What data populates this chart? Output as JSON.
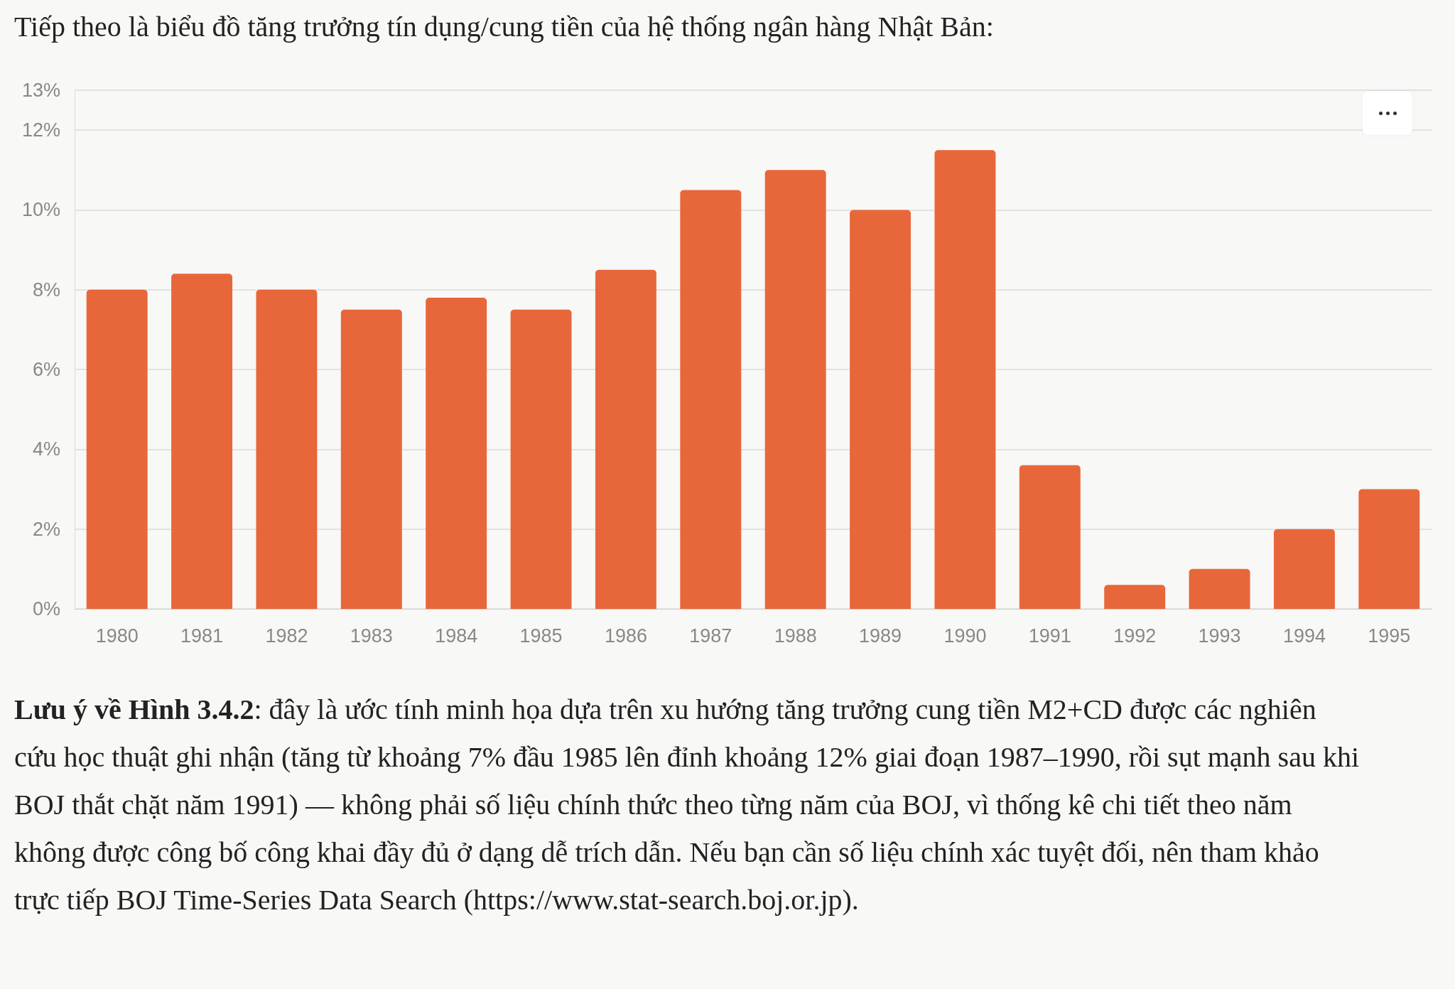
{
  "chart_data": {
    "type": "bar",
    "title": "Tiếp theo là biểu đồ tăng trưởng tín dụng/cung tiền của hệ thống ngân hàng Nhật Bản:",
    "categories": [
      "1980",
      "1981",
      "1982",
      "1983",
      "1984",
      "1985",
      "1986",
      "1987",
      "1988",
      "1989",
      "1990",
      "1991",
      "1992",
      "1993",
      "1994",
      "1995"
    ],
    "values": [
      8,
      8.4,
      8,
      7.5,
      7.8,
      7.5,
      8.5,
      10.5,
      11,
      10,
      11.5,
      3.6,
      0.6,
      1,
      2,
      3
    ],
    "color": "#e8673a",
    "ylim": [
      0,
      13
    ],
    "yticks": [
      {
        "value": 0,
        "label": "0%"
      },
      {
        "value": 2,
        "label": "2%"
      },
      {
        "value": 4,
        "label": "4%"
      },
      {
        "value": 6,
        "label": "6%"
      },
      {
        "value": 8,
        "label": "8%"
      },
      {
        "value": 10,
        "label": "10%"
      },
      {
        "value": 12,
        "label": "12%"
      },
      {
        "value": 13,
        "label": "13%"
      }
    ],
    "grid": "y",
    "annotations": [
      "Lưu ý về Hình 3.4.2",
      ": đây là ước tính minh họa dựa trên xu hướng tăng trưởng cung tiền M2+CD được các nghiên cứu học thuật ghi nhận (tăng từ khoảng 7% đầu 1985 lên đỉnh khoảng 12% giai đoạn 1987–1990, rồi sụt mạnh sau khi BOJ thắt chặt năm 1991) — không phải số liệu chính thức theo từng năm của BOJ, vì thống kê chi tiết theo năm không được công bố công khai đầy đủ ở dạng dễ trích dẫn. Nếu bạn cần số liệu chính xác tuyệt đối, nên tham khảo trực tiếp BOJ Time-Series Data Search (https://www.stat-search.boj.or.jp)."
    ]
  }
}
